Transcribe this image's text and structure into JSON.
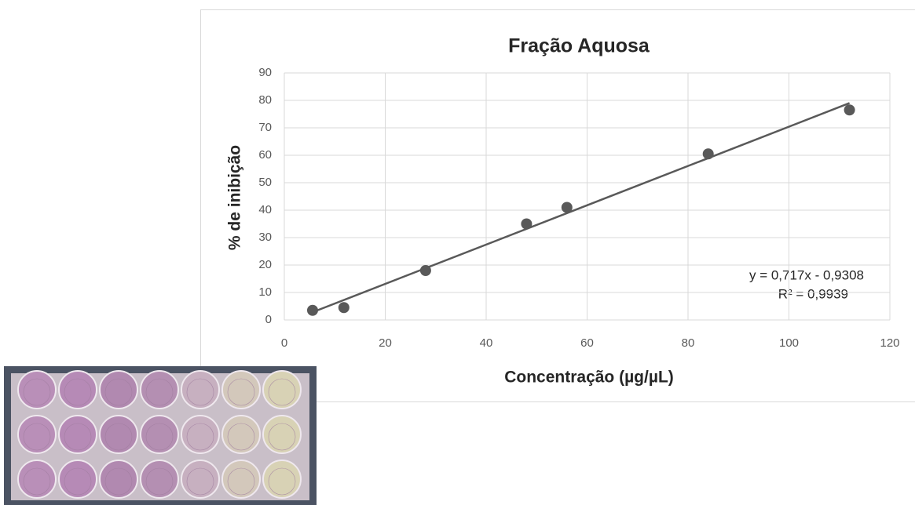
{
  "chart_data": {
    "type": "scatter",
    "title": "Fração Aquosa",
    "x_label": "Concentração (µg/µL)",
    "y_label": "% de inibição",
    "annotations": [
      "y = 0,717x - 0,9308",
      "R² = 0,9939"
    ],
    "series": [
      {
        "color": "#595959",
        "x": [
          5.6,
          11.8,
          28,
          48,
          56,
          84,
          112
        ],
        "values": [
          3.5,
          4.5,
          18,
          35,
          41,
          60.5,
          76.5
        ]
      }
    ],
    "xlim": [
      0,
      120
    ],
    "xticks": [
      0,
      20,
      40,
      60,
      80,
      100,
      120
    ],
    "ylim": [
      0,
      90
    ],
    "yticks": [
      0,
      10,
      20,
      30,
      40,
      50,
      60,
      70,
      80,
      90
    ],
    "grid": true,
    "trendline": "linear"
  }
}
